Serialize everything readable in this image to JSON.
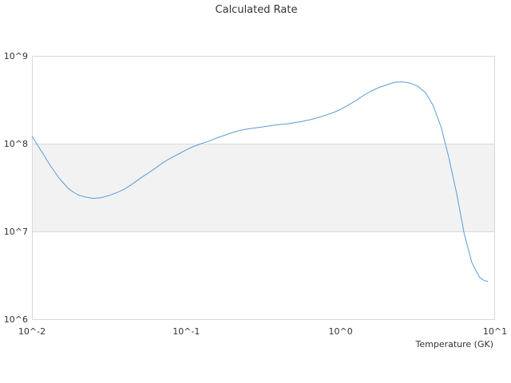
{
  "chart_data": {
    "type": "line",
    "title": "Calculated Rate",
    "xlabel": "Temperature (GK)",
    "ylabel": "",
    "x_scale": "log",
    "y_scale": "log",
    "xlim": [
      0.01,
      10
    ],
    "ylim": [
      1000000,
      1000000000
    ],
    "x_ticks": [
      {
        "value": 0.01,
        "label": "10^-2"
      },
      {
        "value": 0.1,
        "label": "10^-1"
      },
      {
        "value": 1,
        "label": "10^0"
      },
      {
        "value": 10,
        "label": "10^1"
      }
    ],
    "y_ticks": [
      {
        "value": 1000000,
        "label": "10^6"
      },
      {
        "value": 10000000,
        "label": "10^7"
      },
      {
        "value": 100000000,
        "label": "10^8"
      },
      {
        "value": 1000000000,
        "label": "10^9"
      }
    ],
    "shaded_band": [
      10000000,
      100000000
    ],
    "grid": true,
    "colors": {
      "line": "#5b9bd5",
      "band": "#f2f2f2",
      "grid": "#d9d9d9",
      "border": "#d9d9d9"
    },
    "series": [
      {
        "x": [
          0.01,
          0.011,
          0.012,
          0.013,
          0.014,
          0.015,
          0.016,
          0.017,
          0.018,
          0.019,
          0.02,
          0.022,
          0.025,
          0.028,
          0.032,
          0.036,
          0.04,
          0.045,
          0.05,
          0.056,
          0.063,
          0.071,
          0.08,
          0.09,
          0.1,
          0.11,
          0.125,
          0.14,
          0.16,
          0.18,
          0.2,
          0.225,
          0.25,
          0.28,
          0.32,
          0.36,
          0.4,
          0.45,
          0.5,
          0.56,
          0.63,
          0.71,
          0.8,
          0.9,
          1.0,
          1.12,
          1.26,
          1.41,
          1.58,
          1.78,
          2.0,
          2.24,
          2.51,
          2.82,
          3.16,
          3.55,
          3.98,
          4.47,
          5.01,
          5.62,
          6.31,
          7.08,
          7.94,
          8.5,
          8.91,
          9.0
        ],
        "y": [
          122000000,
          93000000,
          73000000,
          58000000,
          48000000,
          40500000,
          35500000,
          31500000,
          29000000,
          27300000,
          26000000,
          24700000,
          23800000,
          24200000,
          25800000,
          28000000,
          30500000,
          35000000,
          40000000,
          45500000,
          52500000,
          61000000,
          69000000,
          77000000,
          85000000,
          92000000,
          100000000,
          107000000,
          117000000,
          126000000,
          134000000,
          142000000,
          147000000,
          151000000,
          156000000,
          161000000,
          165000000,
          168000000,
          173000000,
          179000000,
          187000000,
          197000000,
          211000000,
          226000000,
          246000000,
          275000000,
          311000000,
          355000000,
          398000000,
          437000000,
          470000000,
          500000000,
          505000000,
          490000000,
          450000000,
          380000000,
          270000000,
          155000000,
          70000000,
          28000000,
          9500000,
          4400000,
          3000000,
          2750000,
          2700000,
          2700000
        ]
      }
    ]
  }
}
